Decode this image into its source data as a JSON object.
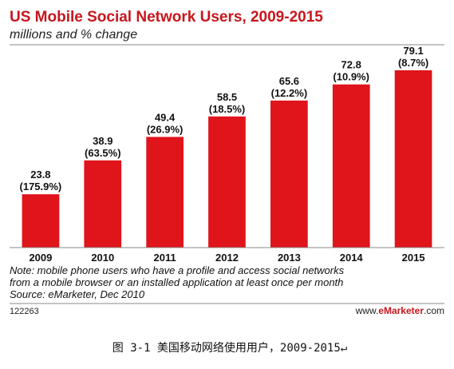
{
  "chart_data": {
    "type": "bar",
    "title": "US Mobile Social Network Users, 2009-2015",
    "subtitle": "millions and % change",
    "categories": [
      "2009",
      "2010",
      "2011",
      "2012",
      "2013",
      "2014",
      "2015"
    ],
    "values": [
      23.8,
      38.9,
      49.4,
      58.5,
      65.6,
      72.8,
      79.1
    ],
    "value_labels": [
      "23.8",
      "38.9",
      "49.4",
      "58.5",
      "65.6",
      "72.8",
      "79.1"
    ],
    "change_labels": [
      "(175.9%)",
      "(63.5%)",
      "(26.9%)",
      "(18.5%)",
      "(12.2%)",
      "(10.9%)",
      "(8.7%)"
    ],
    "bar_color": "#e0141b",
    "ylim": [
      0,
      79.1
    ],
    "grid": false,
    "xlabel": "",
    "ylabel": ""
  },
  "notes": {
    "line1": "Note: mobile phone users who have a profile and access social networks",
    "line2": "from a mobile browser or an installed application at least once per month",
    "source": "Source: eMarketer, Dec 2010"
  },
  "footer": {
    "id": "122263",
    "brand_prefix": "www.",
    "brand_name": "eMarketer",
    "brand_suffix": ".com"
  },
  "caption": "图 3-1 美国移动网络使用用户，2009-2015↵",
  "colors": {
    "title": "#c8161d",
    "bar": "#e0141b",
    "rule": "#888888"
  }
}
